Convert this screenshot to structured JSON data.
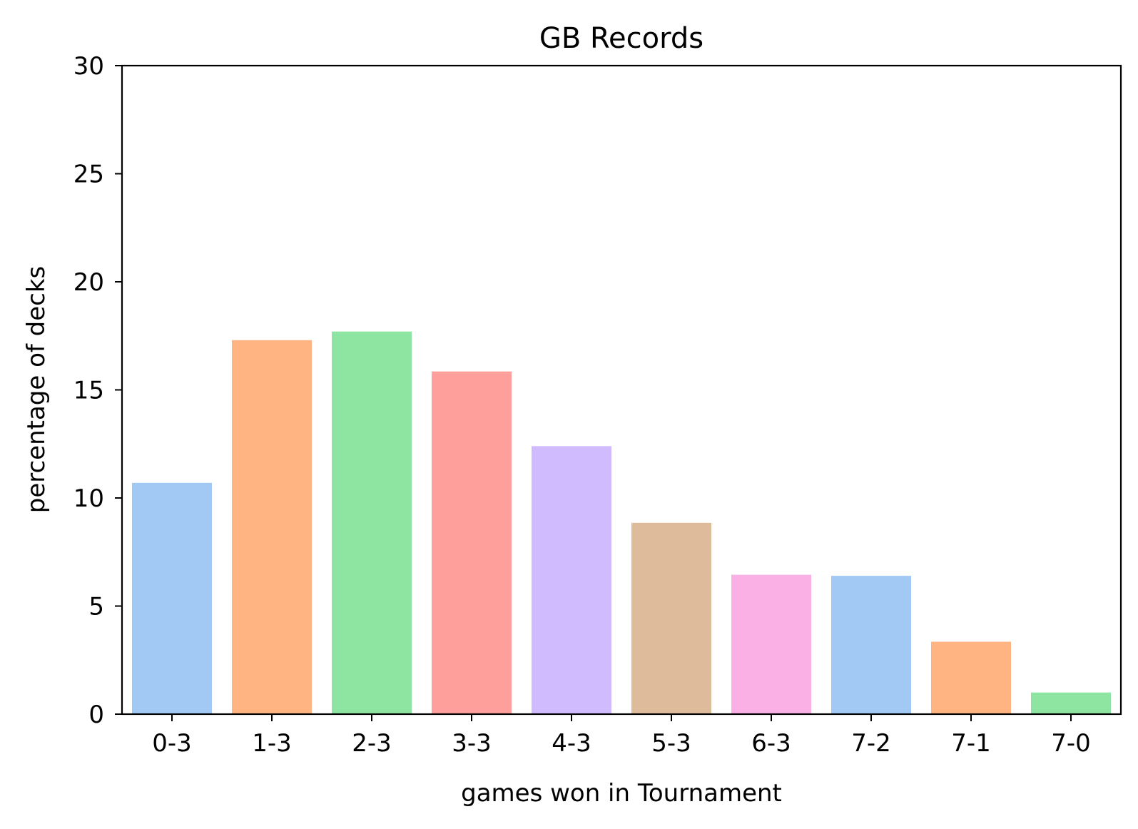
{
  "chart_data": {
    "type": "bar",
    "title": "GB Records",
    "xlabel": "games won in Tournament",
    "ylabel": "percentage of decks",
    "categories": [
      "0-3",
      "1-3",
      "2-3",
      "3-3",
      "4-3",
      "5-3",
      "6-3",
      "7-2",
      "7-1",
      "7-0"
    ],
    "values": [
      10.7,
      17.3,
      17.7,
      15.85,
      12.4,
      8.85,
      6.45,
      6.4,
      3.35,
      1.0
    ],
    "colors": [
      "#a1c9f4",
      "#ffb482",
      "#8de5a1",
      "#ff9f9b",
      "#d0bbff",
      "#debb9b",
      "#fab0e4",
      "#a1c9f4",
      "#ffb482",
      "#8de5a1"
    ],
    "ylim": [
      0,
      30
    ],
    "yticks": [
      "0",
      "5",
      "10",
      "15",
      "20",
      "25",
      "30"
    ],
    "ytick_values": [
      0,
      5,
      10,
      15,
      20,
      25,
      30
    ],
    "grid": false,
    "legend": "none"
  }
}
